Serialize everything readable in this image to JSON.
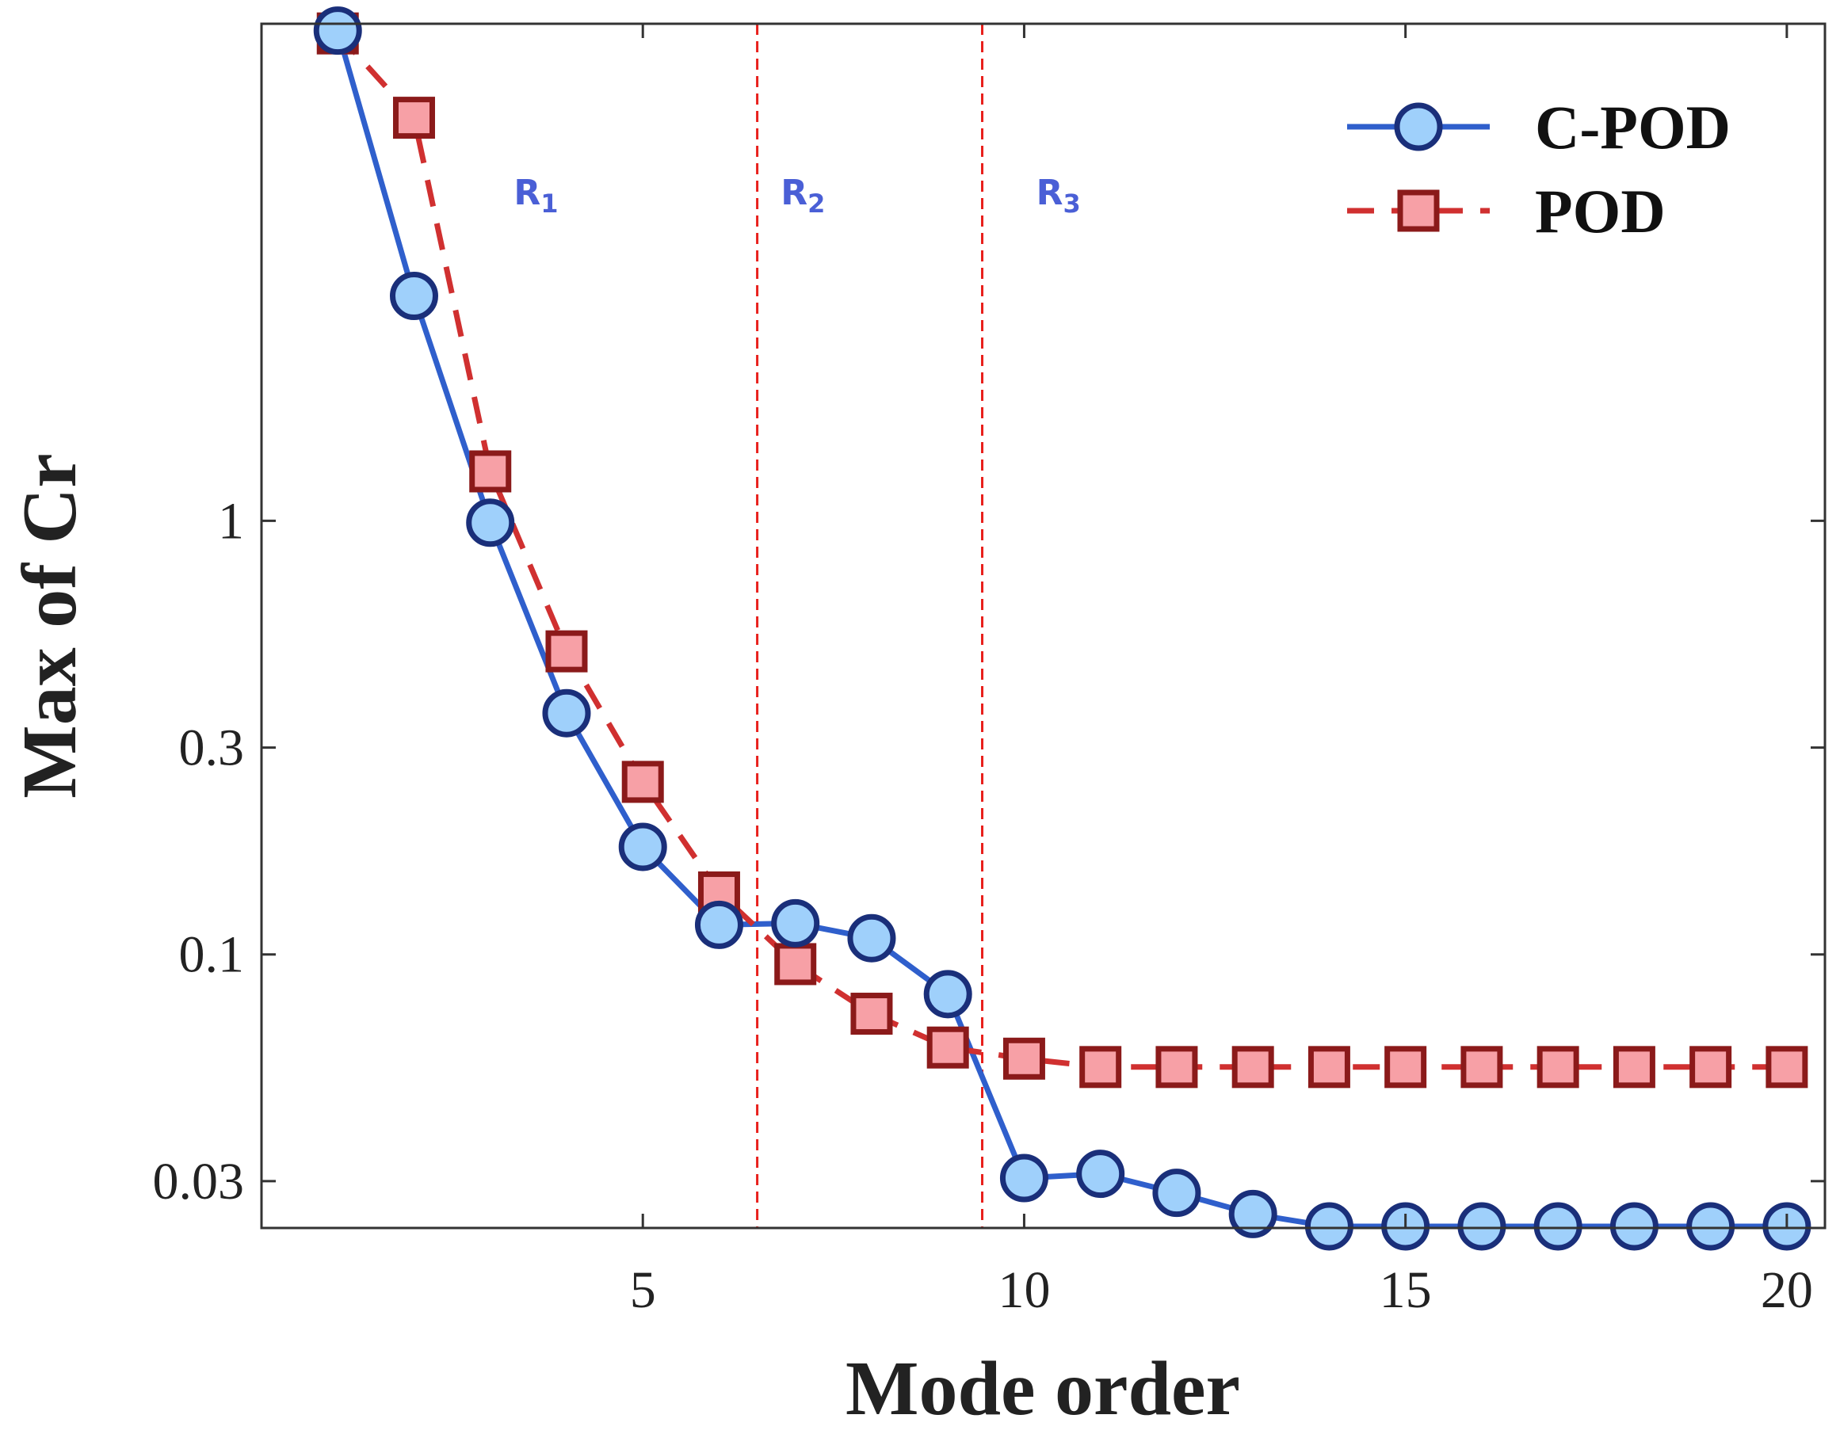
{
  "chart_data": {
    "type": "line",
    "xlabel": "Mode order",
    "ylabel": "Max of Cr",
    "x": [
      1,
      2,
      3,
      4,
      5,
      6,
      7,
      8,
      9,
      10,
      11,
      12,
      13,
      14,
      15,
      16,
      17,
      18,
      19,
      20
    ],
    "xlim": [
      0,
      20.5
    ],
    "ylim": [
      0.0234,
      14
    ],
    "yscale": "log",
    "xticks": [
      5,
      10,
      15,
      20
    ],
    "xtick_labels": [
      "5",
      "10",
      "15",
      "20"
    ],
    "yticks": [
      0.03,
      0.1,
      0.3,
      1
    ],
    "ytick_labels": [
      "0.03",
      "0.1",
      "0.3",
      "1"
    ],
    "grid": false,
    "legend_position": "top-right",
    "series": [
      {
        "name": "C-POD",
        "color": "#2f5fcc",
        "marker_fill": "#9fd0fb",
        "marker_edge": "#1a2f7a",
        "marker": "circle",
        "line_style": "solid",
        "values": [
          13.5,
          3.3,
          0.99,
          0.36,
          0.177,
          0.117,
          0.118,
          0.109,
          0.081,
          0.0305,
          0.0312,
          0.0282,
          0.0252,
          0.0236,
          0.0236,
          0.0236,
          0.0236,
          0.0236,
          0.0236,
          0.0236
        ]
      },
      {
        "name": "POD",
        "color": "#d03030",
        "marker_fill": "#f7a0a6",
        "marker_edge": "#8b1a1a",
        "marker": "square",
        "line_style": "dashed",
        "values": [
          13.3,
          8.5,
          1.3,
          0.5,
          0.25,
          0.139,
          0.095,
          0.073,
          0.061,
          0.0575,
          0.055,
          0.055,
          0.055,
          0.055,
          0.055,
          0.055,
          0.055,
          0.055,
          0.055,
          0.055
        ]
      }
    ],
    "region_dividers": [
      6.5,
      9.45
    ],
    "regions": [
      {
        "label": "R",
        "sub": "1",
        "x": 3.6
      },
      {
        "label": "R",
        "sub": "2",
        "x": 7.1
      },
      {
        "label": "R",
        "sub": "3",
        "x": 10.45
      }
    ]
  }
}
